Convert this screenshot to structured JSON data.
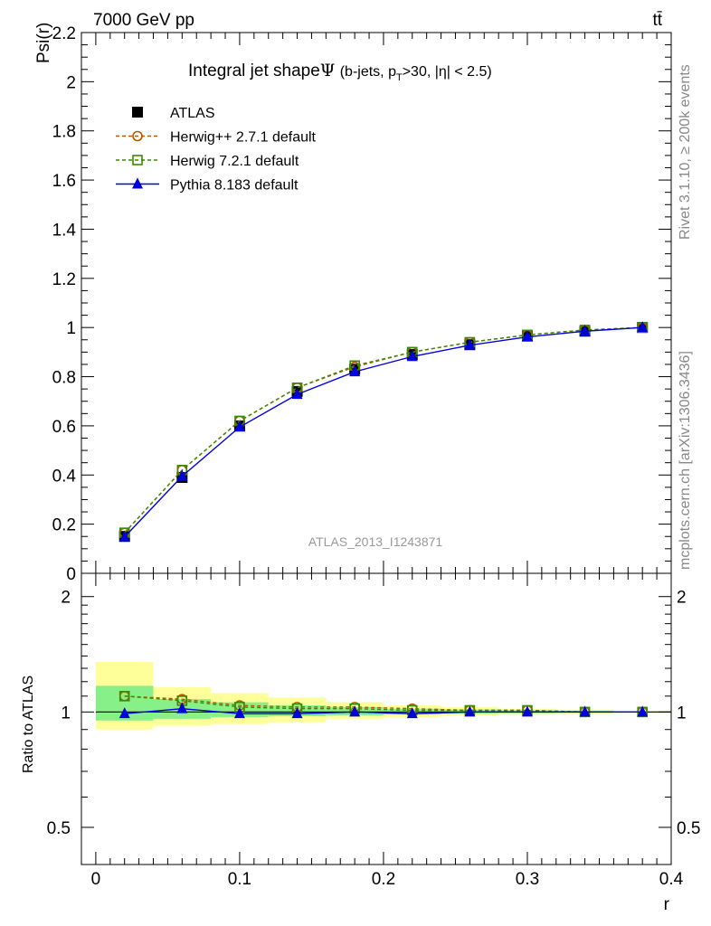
{
  "header": {
    "energy": "7000 GeV pp",
    "process": "tt̄"
  },
  "side_text": {
    "rivet": "Rivet 3.1.10, ≥ 200k events",
    "source": "mcplots.cern.ch [arXiv:1306.3436]"
  },
  "watermark": "ATLAS_2013_I1243871",
  "chart_data": [
    {
      "type": "line",
      "title": "Integral jet shape",
      "title_symbol": "Ψ",
      "title_cut_open": "(b-jets, p",
      "title_cut_sub": "T",
      "title_cut_close": ">30, |η| < 2.5)",
      "ylabel": "Psi(r)",
      "xlabel": "r",
      "xlim": [
        -0.01,
        0.4
      ],
      "ylim": [
        0,
        2.2
      ],
      "x_ticks": [
        "0",
        "0.1",
        "0.2",
        "0.3",
        "0.4"
      ],
      "y_ticks": [
        "0",
        "0.2",
        "0.4",
        "0.6",
        "0.8",
        "1",
        "1.2",
        "1.4",
        "1.6",
        "1.8",
        "2",
        "2.2"
      ],
      "x": [
        0.02,
        0.06,
        0.1,
        0.14,
        0.18,
        0.22,
        0.26,
        0.3,
        0.34,
        0.38
      ],
      "series": [
        {
          "name": "ATLAS",
          "color": "#000000",
          "marker": "square-filled",
          "values": [
            0.15,
            0.39,
            0.6,
            0.74,
            0.83,
            0.89,
            0.93,
            0.965,
            0.985,
            1.0
          ]
        },
        {
          "name": "Herwig++ 2.7.1 default",
          "color": "#b05a00",
          "marker": "circle-open",
          "dash": "4,3",
          "values": [
            0.165,
            0.42,
            0.62,
            0.755,
            0.84,
            0.9,
            0.94,
            0.97,
            0.99,
            1.0
          ]
        },
        {
          "name": "Herwig 7.2.1 default",
          "color": "#3a8a00",
          "marker": "square-open",
          "dash": "4,3",
          "values": [
            0.165,
            0.42,
            0.62,
            0.755,
            0.845,
            0.9,
            0.94,
            0.97,
            0.99,
            1.0
          ]
        },
        {
          "name": "Pythia 8.183 default",
          "color": "#0000dd",
          "marker": "triangle-filled",
          "values": [
            0.148,
            0.395,
            0.595,
            0.728,
            0.82,
            0.882,
            0.928,
            0.962,
            0.985,
            1.0
          ]
        }
      ]
    },
    {
      "type": "line",
      "title": "",
      "ylabel": "Ratio to ATLAS",
      "xlabel": "r",
      "xlim": [
        -0.01,
        0.4
      ],
      "ylim": [
        0.4,
        2.3
      ],
      "y_scale": "log",
      "y_ticks": [
        "0.5",
        "1",
        "2"
      ],
      "x_bin_edges": [
        0.0,
        0.04,
        0.08,
        0.12,
        0.16,
        0.2,
        0.24,
        0.28,
        0.32,
        0.36,
        0.4
      ],
      "band_yellow_lo": [
        0.9,
        0.92,
        0.93,
        0.94,
        0.96,
        0.97,
        0.98,
        0.985,
        0.99,
        0.995
      ],
      "band_yellow_hi": [
        1.35,
        1.16,
        1.12,
        1.09,
        1.06,
        1.04,
        1.03,
        1.02,
        1.015,
        1.005
      ],
      "band_green_lo": [
        0.95,
        0.96,
        0.97,
        0.975,
        0.98,
        0.985,
        0.99,
        0.993,
        0.995,
        0.998
      ],
      "band_green_hi": [
        1.17,
        1.08,
        1.06,
        1.04,
        1.03,
        1.02,
        1.015,
        1.01,
        1.007,
        1.003
      ],
      "x": [
        0.02,
        0.06,
        0.1,
        0.14,
        0.18,
        0.22,
        0.26,
        0.3,
        0.34,
        0.38
      ],
      "series": [
        {
          "name": "ATLAS",
          "color": "#000000",
          "values": [
            1,
            1,
            1,
            1,
            1,
            1,
            1,
            1,
            1,
            1
          ]
        },
        {
          "name": "Herwig++ 2.7.1 default",
          "color": "#b05a00",
          "marker": "circle-open",
          "dash": "4,3",
          "values": [
            1.1,
            1.08,
            1.04,
            1.03,
            1.03,
            1.02,
            1.01,
            1.01,
            1.0,
            1.0
          ]
        },
        {
          "name": "Herwig 7.2.1 default",
          "color": "#3a8a00",
          "marker": "square-open",
          "dash": "4,3",
          "values": [
            1.1,
            1.07,
            1.03,
            1.02,
            1.02,
            1.01,
            1.01,
            1.01,
            1.0,
            1.0
          ]
        },
        {
          "name": "Pythia 8.183 default",
          "color": "#0000dd",
          "marker": "triangle-filled",
          "values": [
            0.99,
            1.02,
            0.99,
            0.99,
            1.0,
            0.99,
            1.0,
            1.0,
            1.0,
            1.0
          ]
        }
      ]
    }
  ]
}
